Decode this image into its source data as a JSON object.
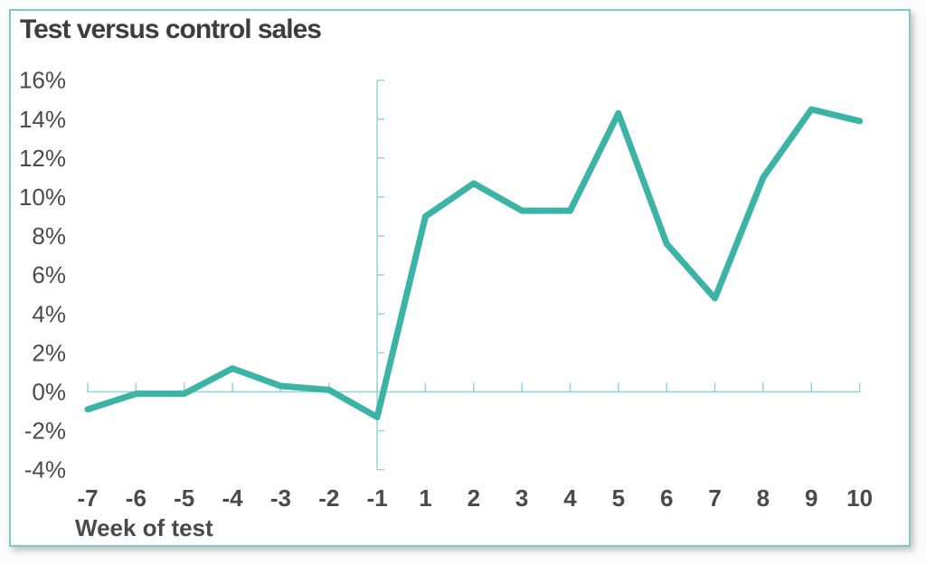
{
  "card": {
    "border_color": "#7fcac3",
    "background": "#ffffff"
  },
  "chart_data": {
    "type": "line",
    "title": "Test versus control sales",
    "xlabel": "Week of test",
    "ylabel": "",
    "x_labels": [
      "-7",
      "-6",
      "-5",
      "-4",
      "-3",
      "-2",
      "-1",
      "1",
      "2",
      "3",
      "4",
      "5",
      "6",
      "7",
      "8",
      "9",
      "10"
    ],
    "series": [
      {
        "name": "Test versus control sales",
        "x": [
          -7,
          -6,
          -5,
          -4,
          -3,
          -2,
          -1,
          1,
          2,
          3,
          4,
          5,
          6,
          7,
          8,
          9,
          10
        ],
        "values_pct": [
          -0.9,
          -0.1,
          -0.1,
          1.2,
          0.3,
          0.1,
          -1.3,
          9.0,
          10.7,
          9.3,
          9.3,
          14.3,
          7.6,
          4.8,
          11.0,
          14.5,
          13.9
        ]
      }
    ],
    "y_ticks_pct": [
      16,
      14,
      12,
      10,
      8,
      6,
      4,
      2,
      0,
      -2,
      -4
    ],
    "y_tick_labels": [
      "16%",
      "14%",
      "12%",
      "10%",
      "8%",
      "6%",
      "4%",
      "2%",
      "0%",
      "-2%",
      "-4%"
    ],
    "ylim_pct": [
      -4,
      16
    ],
    "vertical_axis_at_week": -1,
    "grid": "off",
    "legend": "none",
    "colors": {
      "line": "#3cb4a5",
      "axis": "#96d4cd",
      "tick_label": "#4a4a4a",
      "title_text": "#3d3d3d"
    }
  }
}
